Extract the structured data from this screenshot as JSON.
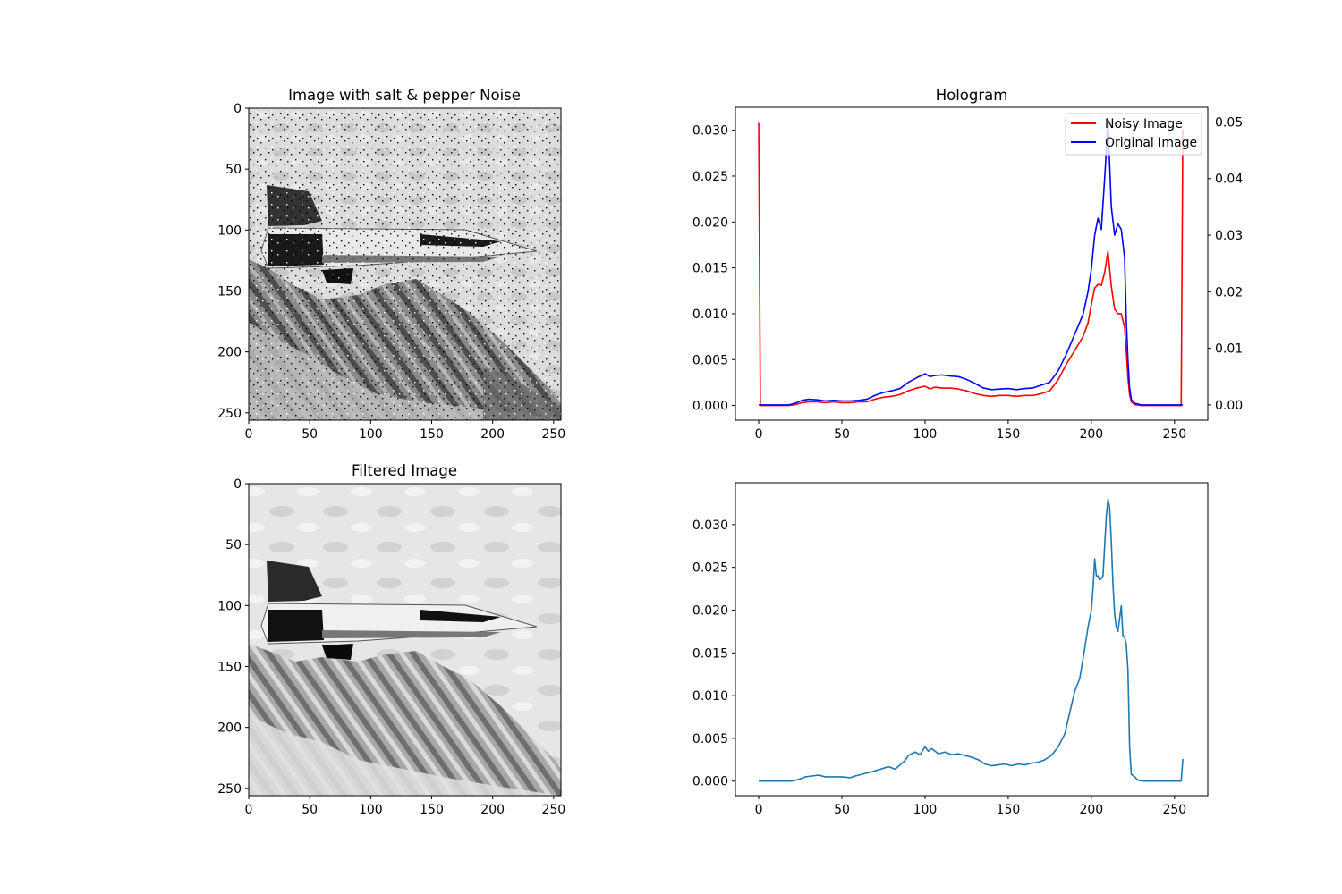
{
  "figure": {
    "background": "#ffffff"
  },
  "panels": {
    "noisy_image": {
      "title": "Image with salt & pepper Noise",
      "xticks": [
        0,
        50,
        100,
        150,
        200,
        250
      ],
      "yticks": [
        0,
        50,
        100,
        150,
        200,
        250
      ],
      "xlim": [
        0,
        256
      ],
      "ylim": [
        256,
        0
      ]
    },
    "filtered_image": {
      "title": "Filtered Image",
      "xticks": [
        0,
        50,
        100,
        150,
        200,
        250
      ],
      "yticks": [
        0,
        50,
        100,
        150,
        200,
        250
      ],
      "xlim": [
        0,
        256
      ],
      "ylim": [
        256,
        0
      ]
    }
  },
  "chart_data": [
    {
      "type": "line",
      "title": "Hologram",
      "xlim": [
        -14,
        270
      ],
      "xticks": [
        0,
        50,
        100,
        150,
        200,
        250
      ],
      "ylim_left": [
        -0.0016,
        0.0325
      ],
      "yticks_left": [
        "0.000",
        "0.005",
        "0.010",
        "0.015",
        "0.020",
        "0.025",
        "0.030"
      ],
      "ylim_right": [
        -0.0027,
        0.0526
      ],
      "yticks_right": [
        "0.00",
        "0.01",
        "0.02",
        "0.03",
        "0.04",
        "0.05"
      ],
      "legend": {
        "placement": "upper right",
        "entries": [
          "Noisy Image",
          "Original Image"
        ]
      },
      "series": [
        {
          "name": "Noisy Image",
          "color": "#ff0000",
          "axis": "left",
          "points": [
            [
              0,
              0.0308
            ],
            [
              1,
              0.0
            ],
            [
              5,
              0.0
            ],
            [
              10,
              0.0
            ],
            [
              15,
              0.0
            ],
            [
              18,
              0.0
            ],
            [
              22,
              0.0001
            ],
            [
              26,
              0.0003
            ],
            [
              30,
              0.0004
            ],
            [
              35,
              0.0004
            ],
            [
              40,
              0.0003
            ],
            [
              45,
              0.0004
            ],
            [
              50,
              0.0003
            ],
            [
              55,
              0.0003
            ],
            [
              60,
              0.0004
            ],
            [
              65,
              0.0004
            ],
            [
              70,
              0.0007
            ],
            [
              75,
              0.0009
            ],
            [
              80,
              0.001
            ],
            [
              85,
              0.0012
            ],
            [
              90,
              0.0016
            ],
            [
              95,
              0.0019
            ],
            [
              100,
              0.0021
            ],
            [
              103,
              0.0018
            ],
            [
              106,
              0.002
            ],
            [
              110,
              0.0019
            ],
            [
              115,
              0.0019
            ],
            [
              120,
              0.0018
            ],
            [
              125,
              0.0016
            ],
            [
              130,
              0.0013
            ],
            [
              135,
              0.0011
            ],
            [
              140,
              0.001
            ],
            [
              145,
              0.0011
            ],
            [
              150,
              0.0011
            ],
            [
              155,
              0.001
            ],
            [
              160,
              0.0011
            ],
            [
              165,
              0.0011
            ],
            [
              170,
              0.0013
            ],
            [
              175,
              0.0016
            ],
            [
              180,
              0.0028
            ],
            [
              185,
              0.0045
            ],
            [
              190,
              0.006
            ],
            [
              195,
              0.0075
            ],
            [
              198,
              0.009
            ],
            [
              200,
              0.011
            ],
            [
              202,
              0.0128
            ],
            [
              204,
              0.0132
            ],
            [
              206,
              0.0131
            ],
            [
              208,
              0.0145
            ],
            [
              210,
              0.0168
            ],
            [
              212,
              0.013
            ],
            [
              214,
              0.0105
            ],
            [
              216,
              0.01
            ],
            [
              218,
              0.01
            ],
            [
              220,
              0.0085
            ],
            [
              221,
              0.006
            ],
            [
              222,
              0.003
            ],
            [
              223,
              0.0012
            ],
            [
              224,
              0.0004
            ],
            [
              226,
              0.0001
            ],
            [
              230,
              0.0
            ],
            [
              240,
              0.0
            ],
            [
              250,
              0.0
            ],
            [
              254,
              0.0
            ],
            [
              255,
              0.0301
            ]
          ]
        },
        {
          "name": "Original Image",
          "color": "#0000ff",
          "axis": "right",
          "points": [
            [
              0,
              0.0
            ],
            [
              5,
              0.0
            ],
            [
              10,
              0.0
            ],
            [
              15,
              0.0
            ],
            [
              18,
              0.0
            ],
            [
              22,
              0.0003
            ],
            [
              26,
              0.0008
            ],
            [
              30,
              0.001
            ],
            [
              35,
              0.0009
            ],
            [
              40,
              0.0007
            ],
            [
              45,
              0.0008
            ],
            [
              50,
              0.0007
            ],
            [
              55,
              0.0007
            ],
            [
              60,
              0.0008
            ],
            [
              65,
              0.001
            ],
            [
              70,
              0.0017
            ],
            [
              75,
              0.0022
            ],
            [
              80,
              0.0025
            ],
            [
              85,
              0.0029
            ],
            [
              90,
              0.004
            ],
            [
              95,
              0.0048
            ],
            [
              100,
              0.0055
            ],
            [
              103,
              0.005
            ],
            [
              106,
              0.0052
            ],
            [
              110,
              0.0053
            ],
            [
              115,
              0.0051
            ],
            [
              120,
              0.005
            ],
            [
              125,
              0.0045
            ],
            [
              130,
              0.0038
            ],
            [
              135,
              0.003
            ],
            [
              140,
              0.0027
            ],
            [
              145,
              0.0028
            ],
            [
              150,
              0.0029
            ],
            [
              155,
              0.0027
            ],
            [
              160,
              0.0029
            ],
            [
              165,
              0.003
            ],
            [
              170,
              0.0035
            ],
            [
              175,
              0.004
            ],
            [
              180,
              0.006
            ],
            [
              185,
              0.009
            ],
            [
              190,
              0.0125
            ],
            [
              195,
              0.016
            ],
            [
              198,
              0.02
            ],
            [
              200,
              0.024
            ],
            [
              202,
              0.03
            ],
            [
              204,
              0.033
            ],
            [
              206,
              0.031
            ],
            [
              208,
              0.04
            ],
            [
              210,
              0.05
            ],
            [
              212,
              0.035
            ],
            [
              214,
              0.03
            ],
            [
              216,
              0.032
            ],
            [
              218,
              0.031
            ],
            [
              220,
              0.026
            ],
            [
              221,
              0.015
            ],
            [
              222,
              0.008
            ],
            [
              223,
              0.003
            ],
            [
              224,
              0.001
            ],
            [
              226,
              0.0003
            ],
            [
              230,
              0.0
            ],
            [
              240,
              0.0
            ],
            [
              250,
              0.0
            ],
            [
              255,
              0.0
            ]
          ]
        }
      ]
    },
    {
      "type": "line",
      "title": "",
      "xlim": [
        -14,
        270
      ],
      "xticks": [
        0,
        50,
        100,
        150,
        200,
        250
      ],
      "ylim": [
        -0.0017,
        0.0349
      ],
      "yticks": [
        "0.000",
        "0.005",
        "0.010",
        "0.015",
        "0.020",
        "0.025",
        "0.030"
      ],
      "series": [
        {
          "color": "#1f77b4",
          "points": [
            [
              0,
              0.0
            ],
            [
              5,
              0.0
            ],
            [
              10,
              0.0
            ],
            [
              15,
              0.0
            ],
            [
              20,
              0.0
            ],
            [
              24,
              0.0002
            ],
            [
              28,
              0.0005
            ],
            [
              32,
              0.0006
            ],
            [
              36,
              0.0007
            ],
            [
              40,
              0.0005
            ],
            [
              45,
              0.0005
            ],
            [
              50,
              0.0005
            ],
            [
              55,
              0.0004
            ],
            [
              58,
              0.0006
            ],
            [
              62,
              0.0008
            ],
            [
              66,
              0.001
            ],
            [
              70,
              0.0012
            ],
            [
              75,
              0.0015
            ],
            [
              78,
              0.0017
            ],
            [
              82,
              0.0014
            ],
            [
              85,
              0.0019
            ],
            [
              88,
              0.0024
            ],
            [
              90,
              0.003
            ],
            [
              94,
              0.0034
            ],
            [
              97,
              0.0031
            ],
            [
              100,
              0.004
            ],
            [
              102,
              0.0035
            ],
            [
              104,
              0.0038
            ],
            [
              108,
              0.0032
            ],
            [
              112,
              0.0034
            ],
            [
              116,
              0.0031
            ],
            [
              120,
              0.0032
            ],
            [
              124,
              0.003
            ],
            [
              128,
              0.0028
            ],
            [
              132,
              0.0025
            ],
            [
              136,
              0.002
            ],
            [
              140,
              0.0018
            ],
            [
              144,
              0.0019
            ],
            [
              148,
              0.002
            ],
            [
              152,
              0.0018
            ],
            [
              156,
              0.002
            ],
            [
              160,
              0.0019
            ],
            [
              164,
              0.0021
            ],
            [
              168,
              0.0022
            ],
            [
              172,
              0.0025
            ],
            [
              176,
              0.003
            ],
            [
              180,
              0.004
            ],
            [
              184,
              0.0055
            ],
            [
              187,
              0.008
            ],
            [
              190,
              0.0105
            ],
            [
              193,
              0.012
            ],
            [
              196,
              0.0155
            ],
            [
              198,
              0.018
            ],
            [
              200,
              0.02
            ],
            [
              201,
              0.0225
            ],
            [
              202,
              0.026
            ],
            [
              203,
              0.024
            ],
            [
              204,
              0.024
            ],
            [
              205,
              0.0235
            ],
            [
              207,
              0.024
            ],
            [
              209,
              0.031
            ],
            [
              210,
              0.033
            ],
            [
              211,
              0.032
            ],
            [
              212,
              0.028
            ],
            [
              213,
              0.023
            ],
            [
              214,
              0.0195
            ],
            [
              215,
              0.018
            ],
            [
              216,
              0.0175
            ],
            [
              217,
              0.019
            ],
            [
              218,
              0.0205
            ],
            [
              219,
              0.017
            ],
            [
              220,
              0.0168
            ],
            [
              221,
              0.016
            ],
            [
              222,
              0.013
            ],
            [
              223,
              0.004
            ],
            [
              224,
              0.0008
            ],
            [
              226,
              0.0005
            ],
            [
              228,
              0.0001
            ],
            [
              232,
              0.0
            ],
            [
              240,
              0.0
            ],
            [
              250,
              0.0
            ],
            [
              254,
              0.0
            ],
            [
              255,
              0.0026
            ]
          ]
        }
      ]
    }
  ]
}
